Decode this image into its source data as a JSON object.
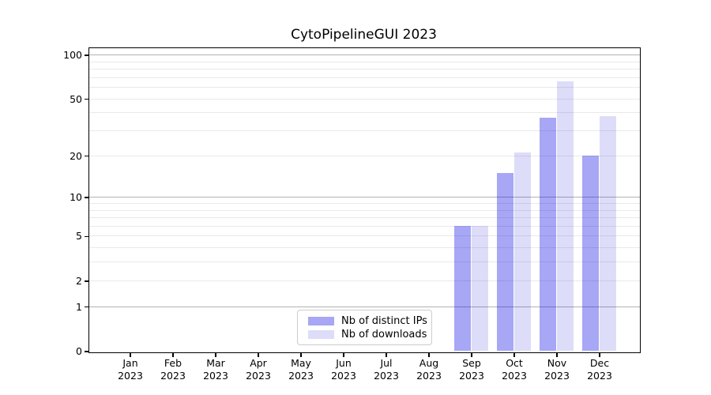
{
  "title": "CytoPipelineGUI 2023",
  "colors": {
    "bar_distinct_ips": "#a7a7f6",
    "bar_downloads": "#dcdcf9",
    "grid_major": "#b2b2b2",
    "grid_minor": "#e9e9e9",
    "axis": "#000000",
    "legend_border": "#cccccc"
  },
  "chart_data": {
    "type": "bar",
    "title": "CytoPipelineGUI 2023",
    "categories": [
      "Jan 2023",
      "Feb 2023",
      "Mar 2023",
      "Apr 2023",
      "May 2023",
      "Jun 2023",
      "Jul 2023",
      "Aug 2023",
      "Sep 2023",
      "Oct 2023",
      "Nov 2023",
      "Dec 2023"
    ],
    "series": [
      {
        "name": "Nb of distinct IPs",
        "values": [
          0,
          0,
          0,
          0,
          0,
          0,
          0,
          0,
          6,
          15,
          37,
          20
        ],
        "color": "#a7a7f6",
        "fill": "rgba(0,0,230,0.345)"
      },
      {
        "name": "Nb of downloads",
        "values": [
          0,
          0,
          0,
          0,
          0,
          0,
          0,
          0,
          6,
          21,
          66,
          38
        ],
        "color": "#dcdcf9",
        "fill": "rgba(0,0,210,0.135)"
      }
    ],
    "xlabel": "",
    "ylabel": "",
    "yscale": "log1p",
    "ylim": [
      0,
      112
    ],
    "y_tick_labels": [
      0,
      1,
      2,
      5,
      10,
      20,
      50,
      100
    ],
    "y_major_gridlines": [
      1,
      10,
      100
    ],
    "y_minor_gridlines": [
      2,
      3,
      4,
      5,
      6,
      7,
      8,
      9,
      20,
      30,
      40,
      50,
      60,
      70,
      80,
      90
    ],
    "grid": "on",
    "legend_position": "lower center"
  }
}
